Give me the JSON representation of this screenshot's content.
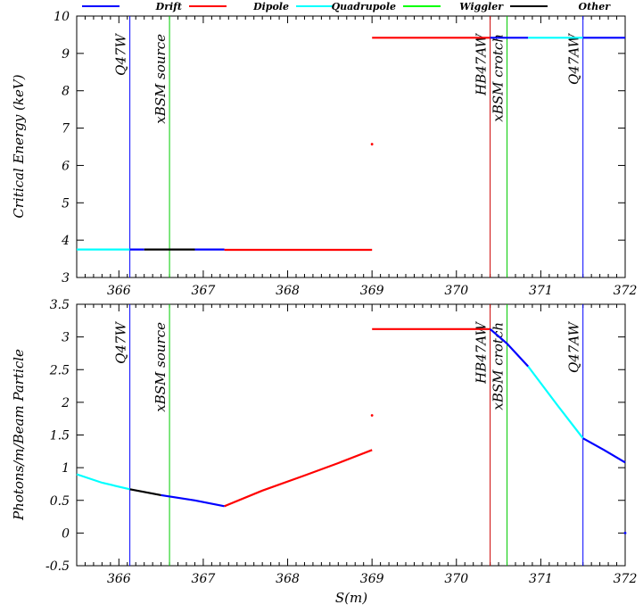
{
  "legend": [
    {
      "label": "Drift",
      "color": "#0000ff"
    },
    {
      "label": "Dipole",
      "color": "#ff0000"
    },
    {
      "label": "Quadrupole",
      "color": "#00ffff"
    },
    {
      "label": "Wiggler",
      "color": "#00ff00"
    },
    {
      "label": "Other",
      "color": "#000000"
    }
  ],
  "chart_data": [
    {
      "type": "line",
      "title": "",
      "xlabel": "",
      "ylabel": "Critical Energy (keV)",
      "xlim": [
        365.5,
        372
      ],
      "ylim": [
        3,
        10
      ],
      "xticks": [
        366,
        367,
        368,
        369,
        370,
        371,
        372
      ],
      "yticks": [
        3,
        4,
        5,
        6,
        7,
        8,
        9,
        10
      ],
      "markers": [
        {
          "label": "Q47W",
          "x": 366.13,
          "color": "#0000ff"
        },
        {
          "label": "xBSM source",
          "x": 366.6,
          "color": "#00cc00"
        },
        {
          "label": "HB47AW",
          "x": 370.4,
          "color": "#cc0000"
        },
        {
          "label": "xBSM crotch",
          "x": 370.6,
          "color": "#00cc00"
        },
        {
          "label": "Q47AW",
          "x": 371.5,
          "color": "#0000ff"
        }
      ],
      "series": [
        {
          "name": "Quadrupole",
          "color": "#00ffff",
          "x": [
            365.5,
            366.13
          ],
          "y": [
            3.75,
            3.75
          ]
        },
        {
          "name": "Drift",
          "color": "#0000ff",
          "x": [
            366.13,
            366.3
          ],
          "y": [
            3.75,
            3.75
          ]
        },
        {
          "name": "Other",
          "color": "#000000",
          "x": [
            366.3,
            366.9
          ],
          "y": [
            3.75,
            3.75
          ]
        },
        {
          "name": "Drift",
          "color": "#0000ff",
          "x": [
            366.9,
            367.25
          ],
          "y": [
            3.75,
            3.75
          ]
        },
        {
          "name": "Dipole",
          "color": "#ff0000",
          "x": [
            367.25,
            369.0
          ],
          "y": [
            3.74,
            3.74
          ]
        },
        {
          "name": "Dipole",
          "color": "#ff0000",
          "x": [
            369.0,
            370.4
          ],
          "y": [
            9.42,
            9.42
          ]
        },
        {
          "name": "Drift",
          "color": "#0000ff",
          "x": [
            370.4,
            370.85
          ],
          "y": [
            9.42,
            9.42
          ]
        },
        {
          "name": "Quadrupole",
          "color": "#00ffff",
          "x": [
            370.85,
            371.5
          ],
          "y": [
            9.42,
            9.42
          ]
        },
        {
          "name": "Drift",
          "color": "#0000ff",
          "x": [
            371.5,
            372.0
          ],
          "y": [
            9.42,
            9.42
          ]
        }
      ],
      "points": [
        {
          "x": 369.0,
          "y": 6.57,
          "color": "#ff0000"
        }
      ]
    },
    {
      "type": "line",
      "title": "",
      "xlabel": "S(m)",
      "ylabel": "Photons/m/Beam Particle",
      "xlim": [
        365.5,
        372
      ],
      "ylim": [
        -0.5,
        3.5
      ],
      "xticks": [
        366,
        367,
        368,
        369,
        370,
        371,
        372
      ],
      "yticks": [
        -0.5,
        0,
        0.5,
        1,
        1.5,
        2,
        2.5,
        3,
        3.5
      ],
      "markers": [
        {
          "label": "Q47W",
          "x": 366.13,
          "color": "#0000ff"
        },
        {
          "label": "xBSM source",
          "x": 366.6,
          "color": "#00cc00"
        },
        {
          "label": "HB47AW",
          "x": 370.4,
          "color": "#cc0000"
        },
        {
          "label": "xBSM crotch",
          "x": 370.6,
          "color": "#00cc00"
        },
        {
          "label": "Q47AW",
          "x": 371.5,
          "color": "#0000ff"
        }
      ],
      "series": [
        {
          "name": "Quadrupole",
          "color": "#00ffff",
          "x": [
            365.5,
            365.8,
            366.13
          ],
          "y": [
            0.9,
            0.77,
            0.67
          ]
        },
        {
          "name": "Other",
          "color": "#000000",
          "x": [
            366.13,
            366.5
          ],
          "y": [
            0.67,
            0.58
          ]
        },
        {
          "name": "Drift",
          "color": "#0000ff",
          "x": [
            366.5,
            366.9,
            367.25
          ],
          "y": [
            0.58,
            0.5,
            0.41
          ]
        },
        {
          "name": "Dipole",
          "color": "#ff0000",
          "x": [
            367.25,
            367.7,
            368.2,
            368.6,
            369.0
          ],
          "y": [
            0.41,
            0.65,
            0.88,
            1.07,
            1.27
          ]
        },
        {
          "name": "Dipole",
          "color": "#ff0000",
          "x": [
            369.0,
            370.4
          ],
          "y": [
            3.12,
            3.12
          ]
        },
        {
          "name": "Drift",
          "color": "#0000ff",
          "x": [
            370.4,
            370.6,
            370.85
          ],
          "y": [
            3.12,
            2.9,
            2.55
          ]
        },
        {
          "name": "Quadrupole",
          "color": "#00ffff",
          "x": [
            370.85,
            371.2,
            371.5
          ],
          "y": [
            2.55,
            1.95,
            1.45
          ]
        },
        {
          "name": "Drift",
          "color": "#0000ff",
          "x": [
            371.5,
            371.75,
            372.0
          ],
          "y": [
            1.45,
            1.27,
            1.08
          ]
        }
      ],
      "points": [
        {
          "x": 369.0,
          "y": 1.8,
          "color": "#ff0000"
        },
        {
          "x": 372.0,
          "y": 0.0,
          "color": "#0000ff"
        }
      ]
    }
  ]
}
